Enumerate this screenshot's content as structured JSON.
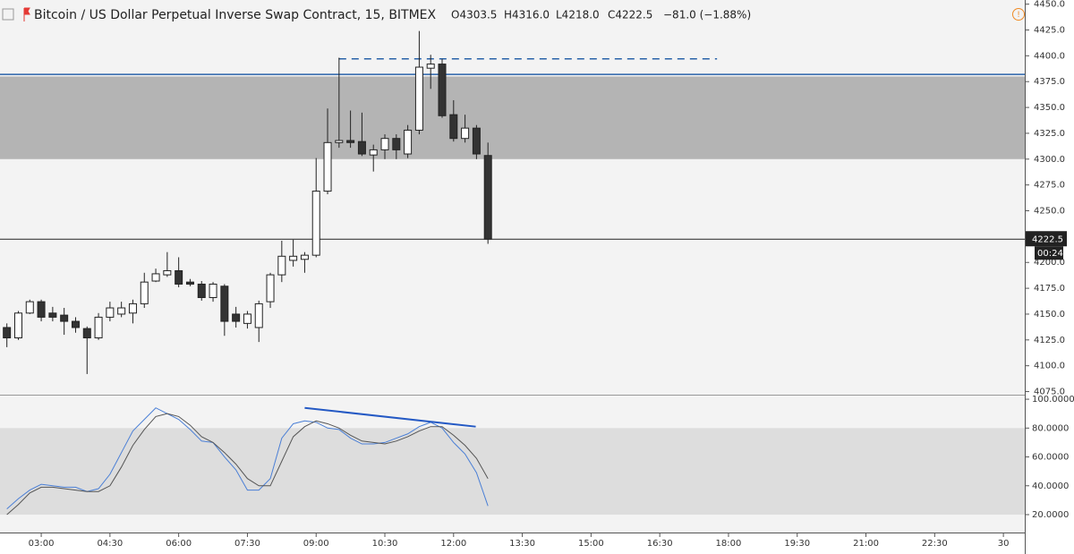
{
  "chart_data": [
    {
      "type": "candlestick",
      "title": "Bitcoin / US Dollar Perpetual Inverse Swap Contract, 15, BITMEX",
      "ohlc_labels": [
        "O4303.5",
        "H4316.0",
        "L4218.0",
        "C4222.5"
      ],
      "change_label": "−81.0 (−1.88%)",
      "x": [
        135,
        150,
        165,
        180,
        195,
        210,
        225,
        240,
        255,
        270,
        285,
        300,
        315,
        330,
        345,
        360,
        375,
        390,
        405,
        420,
        435,
        450,
        465,
        480,
        495,
        510,
        525,
        540,
        555,
        570,
        585,
        600,
        615,
        630,
        645,
        660,
        675,
        690,
        705,
        720,
        735,
        750,
        765
      ],
      "open": [
        4137,
        4127,
        4151,
        4162,
        4151,
        4149,
        4143,
        4136,
        4127,
        4147,
        4150,
        4151,
        4160,
        4182,
        4188,
        4192,
        4181,
        4179,
        4166,
        4177,
        4150,
        4141,
        4137,
        4162,
        4188,
        4202,
        4203,
        4207,
        4269,
        4316,
        4318,
        4317,
        4304,
        4309,
        4320,
        4305,
        4328,
        4388,
        4392,
        4343,
        4320,
        4330,
        4303.5
      ],
      "high": [
        4141,
        4153,
        4164,
        4164,
        4157,
        4156,
        4147,
        4138,
        4151,
        4162,
        4162,
        4164,
        4190,
        4194,
        4210,
        4205,
        4184,
        4182,
        4181,
        4179,
        4157,
        4153,
        4163,
        4190,
        4221,
        4222,
        4210,
        4301,
        4349,
        4398,
        4347,
        4345,
        4314,
        4324,
        4324,
        4333,
        4424,
        4401,
        4397,
        4357,
        4343,
        4333,
        4316
      ],
      "low": [
        4118,
        4125,
        4150,
        4143,
        4143,
        4130,
        4132,
        4092,
        4125,
        4143,
        4147,
        4141,
        4156,
        4181,
        4186,
        4176,
        4177,
        4163,
        4162,
        4129,
        4137,
        4136,
        4123,
        4156,
        4181,
        4196,
        4190,
        4205,
        4266,
        4311,
        4311,
        4303,
        4288,
        4300,
        4300,
        4301,
        4324,
        4368,
        4340,
        4317,
        4316,
        4300,
        4218
      ],
      "close": [
        4127,
        4151,
        4162,
        4147,
        4147,
        4143,
        4137,
        4127,
        4147,
        4156,
        4156,
        4160,
        4181,
        4189,
        4192,
        4179,
        4179,
        4166,
        4179,
        4143,
        4143,
        4150,
        4160,
        4188,
        4206,
        4206,
        4207,
        4269,
        4316,
        4318,
        4316,
        4305,
        4309,
        4320,
        4309,
        4328,
        4389,
        4392,
        4342,
        4320,
        4330,
        4305,
        4222.5
      ],
      "up_color": "#ffffff",
      "down_color": "#333333",
      "xlim": [
        126,
        1468
      ],
      "ylim": [
        4072,
        4454
      ],
      "yticks": [
        {
          "value": 4450,
          "label": "4450.0"
        },
        {
          "value": 4425,
          "label": "4425.0"
        },
        {
          "value": 4400,
          "label": "4400.0"
        },
        {
          "value": 4375,
          "label": "4375.0"
        },
        {
          "value": 4350,
          "label": "4350.0"
        },
        {
          "value": 4325,
          "label": "4325.0"
        },
        {
          "value": 4300,
          "label": "4300.0"
        },
        {
          "value": 4275,
          "label": "4275.0"
        },
        {
          "value": 4250,
          "label": "4250.0"
        },
        {
          "value": 4225,
          "label": "4225.0"
        },
        {
          "value": 4200,
          "label": "4200.0"
        },
        {
          "value": 4175,
          "label": "4175.0"
        },
        {
          "value": 4150,
          "label": "4150.0"
        },
        {
          "value": 4125,
          "label": "4125.0"
        },
        {
          "value": 4100,
          "label": "4100.0"
        },
        {
          "value": 4075,
          "label": "4075.0"
        }
      ],
      "zone": [
        4300,
        4380
      ],
      "zone_color": "#b0b0b0",
      "level": 4382,
      "level_color": "#2962a8",
      "dashed_level": {
        "x": [
          570,
          1065
        ],
        "value": 4397,
        "color": "#2962a8"
      },
      "last_price": 4222.5,
      "countdown": "00:24"
    },
    {
      "type": "line",
      "x": [
        135,
        150,
        165,
        180,
        195,
        210,
        225,
        240,
        255,
        270,
        285,
        300,
        315,
        330,
        345,
        360,
        375,
        390,
        405,
        420,
        435,
        450,
        465,
        480,
        495,
        510,
        525,
        540,
        555,
        570,
        585,
        600,
        615,
        630,
        645,
        660,
        675,
        690,
        705,
        720,
        735,
        750,
        765
      ],
      "series": [
        {
          "color": "#4a7fd6",
          "values": [
            24,
            31,
            37,
            41,
            40,
            39,
            39,
            36,
            38,
            48,
            63,
            78,
            86,
            94,
            90,
            86,
            79,
            71,
            70,
            60,
            51,
            37,
            37,
            45,
            73,
            83,
            85,
            84,
            80,
            79,
            73,
            69,
            69,
            70,
            73,
            76,
            81,
            84,
            80,
            70,
            62,
            49,
            26
          ]
        },
        {
          "color": "#555555",
          "values": [
            20,
            27,
            35,
            39,
            39,
            38,
            37,
            36,
            36,
            40,
            53,
            68,
            79,
            88,
            90,
            88,
            82,
            74,
            70,
            63,
            55,
            45,
            40,
            40,
            57,
            74,
            81,
            85,
            83,
            80,
            75,
            71,
            70,
            69,
            71,
            74,
            78,
            81,
            81,
            75,
            68,
            59,
            45
          ]
        }
      ],
      "band": [
        20,
        80
      ],
      "band_color": "#dddddd",
      "divergence": {
        "x": [
          525,
          749
        ],
        "values": [
          94,
          81
        ],
        "color": "#2459c4"
      },
      "xlim": [
        126,
        1468
      ],
      "ylim": [
        7.6,
        101.9
      ],
      "xticks": [
        {
          "value": 180,
          "label": "03:00"
        },
        {
          "value": 270,
          "label": "04:30"
        },
        {
          "value": 360,
          "label": "06:00"
        },
        {
          "value": 450,
          "label": "07:30"
        },
        {
          "value": 540,
          "label": "09:00"
        },
        {
          "value": 630,
          "label": "10:30"
        },
        {
          "value": 720,
          "label": "12:00"
        },
        {
          "value": 810,
          "label": "13:30"
        },
        {
          "value": 900,
          "label": "15:00"
        },
        {
          "value": 990,
          "label": "16:30"
        },
        {
          "value": 1080,
          "label": "18:00"
        },
        {
          "value": 1170,
          "label": "19:30"
        },
        {
          "value": 1260,
          "label": "21:00"
        },
        {
          "value": 1350,
          "label": "22:30"
        },
        {
          "value": 1440,
          "label": "30"
        }
      ],
      "yticks": [
        {
          "value": 100,
          "label": "100.0000"
        },
        {
          "value": 80,
          "label": "80.0000"
        },
        {
          "value": 60,
          "label": "60.0000"
        },
        {
          "value": 40,
          "label": "40.0000"
        },
        {
          "value": 20,
          "label": "20.0000"
        }
      ]
    }
  ]
}
